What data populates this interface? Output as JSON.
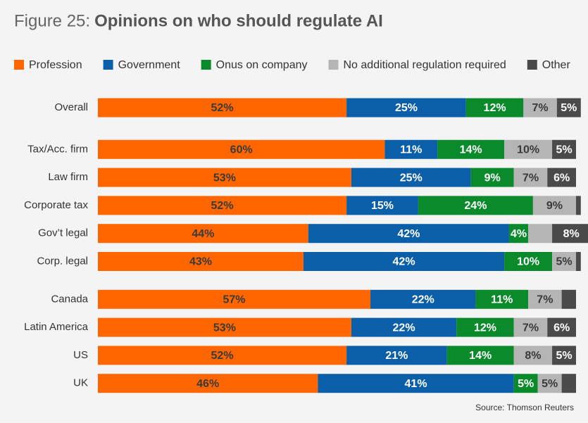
{
  "chart_data": {
    "type": "stacked-bar-horizontal",
    "figure_label": "Figure 25:",
    "title": "Opinions on who should regulate AI",
    "source": "Source: Thomson Reuters",
    "categories": [
      "Overall",
      "Tax/Acc. firm",
      "Law firm",
      "Corporate tax",
      "Gov’t legal",
      "Corp. legal",
      "Canada",
      "Latin America",
      "US",
      "UK"
    ],
    "xlim": [
      0,
      100
    ],
    "series": [
      {
        "name": "Profession",
        "color": "#ff6600",
        "values": [
          52,
          60,
          53,
          52,
          44,
          43,
          57,
          53,
          52,
          46
        ],
        "value_labels": [
          "52%",
          "60%",
          "53%",
          "52%",
          "44%",
          "43%",
          "57%",
          "53%",
          "52%",
          "46%"
        ]
      },
      {
        "name": "Government",
        "color": "#0b5ea8",
        "values": [
          25,
          11,
          25,
          15,
          42,
          42,
          22,
          22,
          21,
          41
        ],
        "value_labels": [
          "25%",
          "11%",
          "25%",
          "15%",
          "42%",
          "42%",
          "22%",
          "22%",
          "21%",
          "41%"
        ]
      },
      {
        "name": "Onus on company",
        "color": "#0b8a2c",
        "values": [
          12,
          14,
          9,
          24,
          4,
          10,
          11,
          12,
          14,
          5
        ],
        "value_labels": [
          "12%",
          "14%",
          "9%",
          "24%",
          "4%",
          "10%",
          "11%",
          "12%",
          "14%",
          "5%"
        ]
      },
      {
        "name": "No additional regulation required",
        "color": "#b5b5b5",
        "values": [
          7,
          10,
          7,
          9,
          5,
          5,
          7,
          7,
          8,
          5
        ],
        "value_labels": [
          "7%",
          "10%",
          "7%",
          "9%",
          null,
          "5%",
          "7%",
          "7%",
          "8%",
          "5%"
        ]
      },
      {
        "name": "Other",
        "color": "#4a4a4a",
        "values": [
          5,
          5,
          6,
          1,
          8,
          1,
          3,
          6,
          5,
          3
        ],
        "value_labels": [
          "5%",
          "5%",
          "6%",
          null,
          "8%",
          null,
          null,
          "6%",
          "5%",
          null
        ]
      }
    ]
  }
}
